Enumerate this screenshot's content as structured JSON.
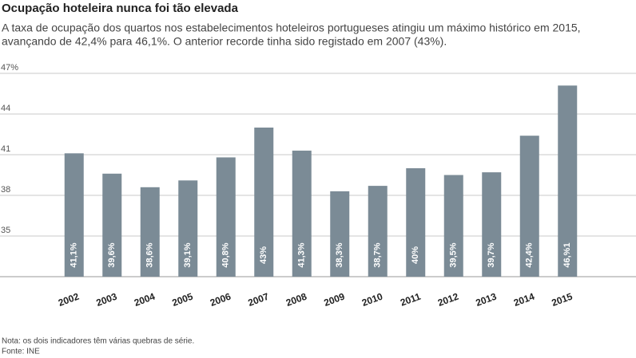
{
  "chart_data": {
    "type": "bar",
    "title": "Ocupação hoteleira nunca foi tão elevada",
    "subtitle": [
      "A taxa de ocupação dos quartos nos estabelecimentos hoteleiros portugueses atingiu um máximo histórico em 2015,",
      "avançando de 42,4% para 46,1%. O anterior recorde tinha sido registado em 2007 (43%)."
    ],
    "categories": [
      "2002",
      "2003",
      "2004",
      "2005",
      "2006",
      "2007",
      "2008",
      "2009",
      "2010",
      "2011",
      "2012",
      "2013",
      "2014",
      "2015"
    ],
    "values": [
      41.1,
      39.6,
      38.6,
      39.1,
      40.8,
      43,
      41.3,
      38.3,
      38.7,
      40,
      39.5,
      39.7,
      42.4,
      46.1
    ],
    "value_labels": [
      "41,1%",
      "39,6%",
      "38,6%",
      "39,1%",
      "40,8%",
      "43%",
      "41,3%",
      "38,3%",
      "38,7%",
      "40%",
      "39,5%",
      "39,7%",
      "42,4%",
      "46,%1"
    ],
    "color": "#7b8b96",
    "ylim": [
      32,
      47
    ],
    "yticks": [
      35,
      38,
      41,
      44,
      {
        "value": 47,
        "label": "47%"
      }
    ],
    "grid": true,
    "notes": [
      "Nota: os dois indicadores têm várias quebras de série.",
      "Fonte: INE"
    ]
  }
}
